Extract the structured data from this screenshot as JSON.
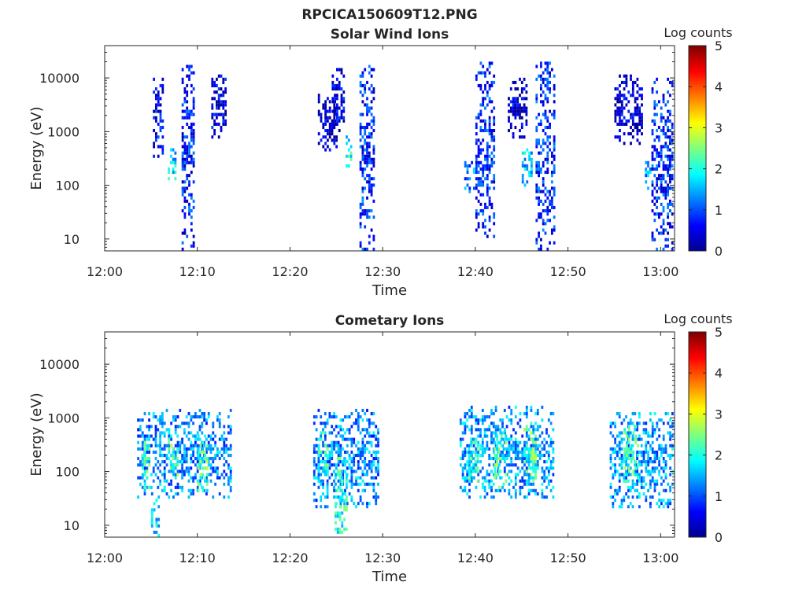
{
  "figure": {
    "title": "RPCICA150609T12.PNG"
  },
  "colormap": [
    "#00008f",
    "#0000ff",
    "#007fff",
    "#00ffff",
    "#7fff7f",
    "#ffff00",
    "#ff7f00",
    "#ff0000",
    "#7f0000"
  ],
  "chart_data": [
    {
      "type": "heatmap",
      "title": "Solar Wind Ions",
      "xlabel": "Time",
      "ylabel": "Energy (eV)",
      "x_ticks": [
        "12:00",
        "12:10",
        "12:20",
        "12:30",
        "12:40",
        "12:50",
        "13:00"
      ],
      "x_range_minutes": [
        0,
        61.5
      ],
      "y_ticks": [
        {
          "value": 10,
          "label": "10"
        },
        {
          "value": 100,
          "label": "100"
        },
        {
          "value": 1000,
          "label": "1000"
        },
        {
          "value": 10000,
          "label": "10000"
        }
      ],
      "y_scale": "log",
      "y_range_eV": [
        6,
        40000
      ],
      "colorbar": {
        "title": "Log counts",
        "range": [
          0,
          5
        ],
        "ticks": [
          "0",
          "1",
          "2",
          "3",
          "4",
          "5"
        ]
      },
      "bursts": [
        {
          "t_start": 5.2,
          "t_end": 6.2,
          "e_min": 300,
          "e_max": 10000,
          "level": 0.5
        },
        {
          "t_start": 6.8,
          "t_end": 7.6,
          "e_min": 130,
          "e_max": 500,
          "level": 1.7
        },
        {
          "t_start": 8.3,
          "t_end": 9.6,
          "e_min": 6,
          "e_max": 17000,
          "level": 0.7
        },
        {
          "t_start": 11.5,
          "t_end": 13.0,
          "e_min": 700,
          "e_max": 12000,
          "level": 0.4
        },
        {
          "t_start": 23.0,
          "t_end": 25.0,
          "e_min": 400,
          "e_max": 5000,
          "level": 0.3
        },
        {
          "t_start": 24.5,
          "t_end": 25.8,
          "e_min": 800,
          "e_max": 16000,
          "level": 0.4
        },
        {
          "t_start": 26.0,
          "t_end": 26.5,
          "e_min": 200,
          "e_max": 800,
          "level": 1.8
        },
        {
          "t_start": 27.5,
          "t_end": 29.0,
          "e_min": 6,
          "e_max": 17000,
          "level": 0.8
        },
        {
          "t_start": 38.8,
          "t_end": 39.8,
          "e_min": 70,
          "e_max": 300,
          "level": 1.2
        },
        {
          "t_start": 40.0,
          "t_end": 42.0,
          "e_min": 10,
          "e_max": 20000,
          "level": 0.8
        },
        {
          "t_start": 43.5,
          "t_end": 45.5,
          "e_min": 700,
          "e_max": 10000,
          "level": 0.3
        },
        {
          "t_start": 45.0,
          "t_end": 46.0,
          "e_min": 100,
          "e_max": 500,
          "level": 1.5
        },
        {
          "t_start": 46.5,
          "t_end": 48.5,
          "e_min": 6,
          "e_max": 20000,
          "level": 0.8
        },
        {
          "t_start": 55.0,
          "t_end": 58.0,
          "e_min": 600,
          "e_max": 12000,
          "level": 0.3
        },
        {
          "t_start": 58.3,
          "t_end": 58.8,
          "e_min": 80,
          "e_max": 300,
          "level": 1.5
        },
        {
          "t_start": 59.0,
          "t_end": 61.2,
          "e_min": 6,
          "e_max": 10000,
          "level": 0.8
        }
      ]
    },
    {
      "type": "heatmap",
      "title": "Cometary Ions",
      "xlabel": "Time",
      "ylabel": "Energy (eV)",
      "x_ticks": [
        "12:00",
        "12:10",
        "12:20",
        "12:30",
        "12:40",
        "12:50",
        "13:00"
      ],
      "x_range_minutes": [
        0,
        61.5
      ],
      "y_ticks": [
        {
          "value": 10,
          "label": "10"
        },
        {
          "value": 100,
          "label": "100"
        },
        {
          "value": 1000,
          "label": "1000"
        },
        {
          "value": 10000,
          "label": "10000"
        }
      ],
      "y_scale": "log",
      "y_range_eV": [
        6,
        40000
      ],
      "colorbar": {
        "title": "Log counts",
        "range": [
          0,
          5
        ],
        "ticks": [
          "0",
          "1",
          "2",
          "3",
          "4",
          "5"
        ]
      },
      "bursts": [
        {
          "t_start": 3.5,
          "t_end": 13.5,
          "e_min": 30,
          "e_max": 1500,
          "level": 1.3
        },
        {
          "t_start": 4.0,
          "t_end": 4.8,
          "e_min": 50,
          "e_max": 500,
          "level": 2.2
        },
        {
          "t_start": 6.8,
          "t_end": 7.8,
          "e_min": 80,
          "e_max": 600,
          "level": 2.3
        },
        {
          "t_start": 10.0,
          "t_end": 11.0,
          "e_min": 40,
          "e_max": 500,
          "level": 2.2
        },
        {
          "t_start": 5.0,
          "t_end": 5.8,
          "e_min": 6,
          "e_max": 40,
          "level": 1.6
        },
        {
          "t_start": 22.5,
          "t_end": 29.5,
          "e_min": 20,
          "e_max": 1500,
          "level": 1.3
        },
        {
          "t_start": 23.0,
          "t_end": 24.0,
          "e_min": 60,
          "e_max": 600,
          "level": 2.1
        },
        {
          "t_start": 24.8,
          "t_end": 26.2,
          "e_min": 6,
          "e_max": 200,
          "level": 2.0
        },
        {
          "t_start": 38.3,
          "t_end": 48.5,
          "e_min": 30,
          "e_max": 1800,
          "level": 1.4
        },
        {
          "t_start": 39.2,
          "t_end": 40.2,
          "e_min": 60,
          "e_max": 400,
          "level": 2.1
        },
        {
          "t_start": 42.0,
          "t_end": 43.2,
          "e_min": 50,
          "e_max": 600,
          "level": 2.2
        },
        {
          "t_start": 45.2,
          "t_end": 46.5,
          "e_min": 60,
          "e_max": 800,
          "level": 2.3
        },
        {
          "t_start": 54.5,
          "t_end": 61.2,
          "e_min": 20,
          "e_max": 1200,
          "level": 1.4
        },
        {
          "t_start": 56.0,
          "t_end": 57.5,
          "e_min": 60,
          "e_max": 700,
          "level": 2.2
        }
      ]
    }
  ]
}
